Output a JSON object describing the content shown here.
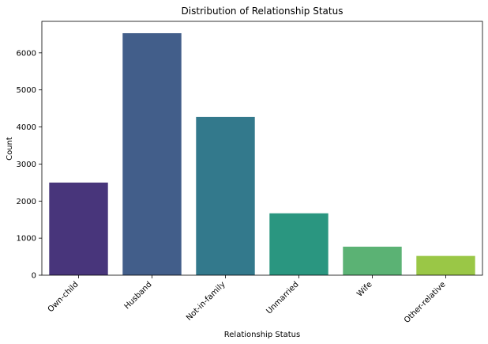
{
  "chart_data": {
    "type": "bar",
    "title": "Distribution of Relationship Status",
    "xlabel": "Relationship Status",
    "ylabel": "Count",
    "categories": [
      "Own-child",
      "Husband",
      "Not-in-family",
      "Unmarried",
      "Wife",
      "Other-relative"
    ],
    "values": [
      2500,
      6530,
      4270,
      1670,
      770,
      520
    ],
    "colors": [
      "#48357b",
      "#425e8a",
      "#33798c",
      "#2a9680",
      "#5bb274",
      "#9ac746"
    ],
    "ylim": [
      0,
      6850
    ],
    "yticks": [
      0,
      1000,
      2000,
      3000,
      4000,
      5000,
      6000
    ],
    "ytick_labels": [
      "0",
      "1000",
      "2000",
      "3000",
      "4000",
      "5000",
      "6000"
    ],
    "grid": false,
    "legend": "none"
  }
}
